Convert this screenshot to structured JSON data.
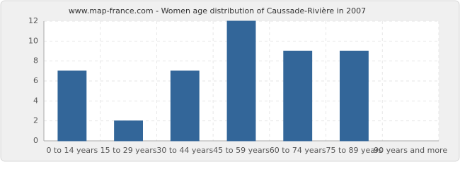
{
  "chart_data": {
    "type": "bar",
    "title": "www.map-france.com - Women age distribution of Caussade-Rivière in 2007",
    "categories": [
      "0 to 14 years",
      "15 to 29 years",
      "30 to 44 years",
      "45 to 59 years",
      "60 to 74 years",
      "75 to 89 years",
      "90 years and more"
    ],
    "values": [
      7,
      2,
      7,
      12,
      9,
      9,
      0
    ],
    "color": "#336699",
    "ylim": [
      0,
      12
    ],
    "yticks": [
      0,
      2,
      4,
      6,
      8,
      10,
      12
    ],
    "grid": true
  }
}
